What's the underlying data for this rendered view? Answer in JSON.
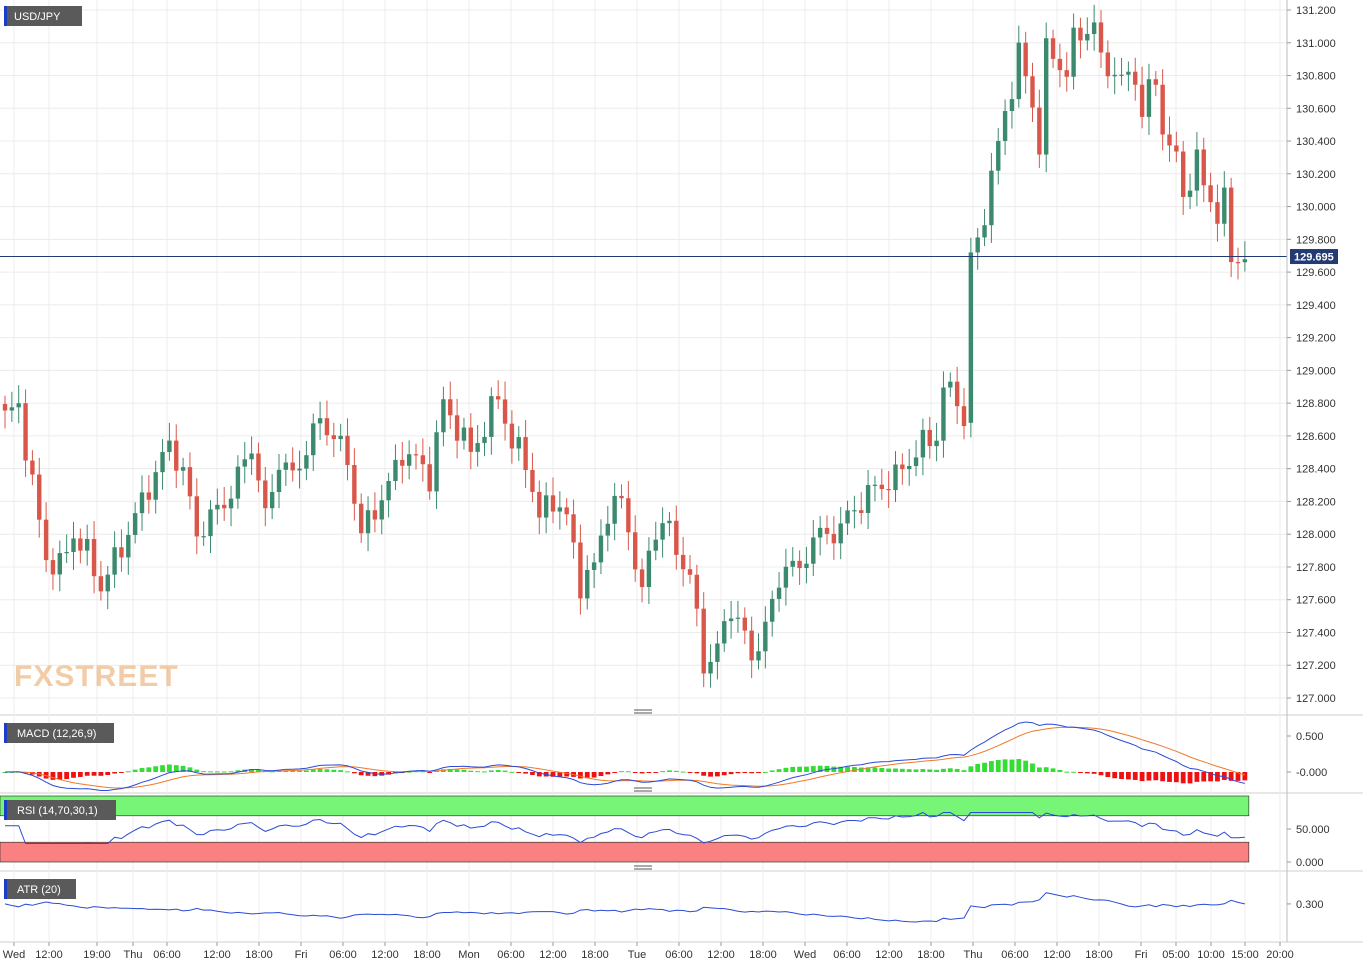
{
  "symbol": "USD/JPY",
  "watermark": "FXSTREET",
  "current_price": {
    "value": 129.695,
    "label": "129.695"
  },
  "colors": {
    "up": "#3b8a6e",
    "down": "#d9574a",
    "price_line": "#243a73",
    "macd_line": "#2b4bd6",
    "signal_line": "#f07a2a",
    "hist_pos": "#33dd33",
    "hist_neg": "#ee1111",
    "rsi_over": "#77f577",
    "rsi_under": "#f98181",
    "rsi_line": "#2b4bd6",
    "atr_line": "#2b4bd6",
    "label_bg": "#5a5a5a",
    "marker": "#1a3ec8"
  },
  "price_axis": {
    "min": 127.0,
    "max": 131.2,
    "ticks": [
      "131.200",
      "131.000",
      "130.800",
      "130.600",
      "130.400",
      "130.200",
      "130.000",
      "129.800",
      "129.600",
      "129.400",
      "129.200",
      "129.000",
      "128.800",
      "128.600",
      "128.400",
      "128.200",
      "128.000",
      "127.800",
      "127.600",
      "127.400",
      "127.200",
      "127.000"
    ]
  },
  "time_axis": {
    "labels": [
      "Wed",
      "12:00",
      "19:00",
      "Thu",
      "06:00",
      "12:00",
      "18:00",
      "Fri",
      "06:00",
      "12:00",
      "18:00",
      "Mon",
      "06:00",
      "12:00",
      "18:00",
      "Tue",
      "06:00",
      "12:00",
      "18:00",
      "Wed",
      "06:00",
      "12:00",
      "18:00",
      "Thu",
      "06:00",
      "12:00",
      "18:00",
      "Fri",
      "05:00",
      "10:00",
      "15:00",
      "20:00"
    ]
  },
  "indicators": {
    "macd": {
      "label": "MACD (12,26,9)",
      "ticks": [
        "0.500",
        "-0.000"
      ],
      "range": [
        -0.25,
        0.75
      ]
    },
    "rsi": {
      "label": "RSI (14,70,30,1)",
      "ticks": [
        "50.000",
        "0.000"
      ],
      "overbought": 70,
      "oversold": 30,
      "range": [
        0,
        100
      ]
    },
    "atr": {
      "label": "ATR (20)",
      "ticks": [
        "0.300"
      ],
      "range": [
        0.16,
        0.42
      ]
    }
  },
  "chart_data": {
    "type": "candlestick",
    "title": "USD/JPY",
    "ylim": [
      127.0,
      131.2
    ],
    "anchors": [
      [
        0,
        128.72
      ],
      [
        2,
        128.78
      ],
      [
        4,
        128.3
      ],
      [
        6,
        127.85
      ],
      [
        8,
        127.8
      ],
      [
        10,
        128.0
      ],
      [
        12,
        127.88
      ],
      [
        14,
        127.68
      ],
      [
        17,
        127.92
      ],
      [
        20,
        128.2
      ],
      [
        24,
        128.55
      ],
      [
        26,
        128.38
      ],
      [
        28,
        128.0
      ],
      [
        30,
        128.1
      ],
      [
        33,
        128.25
      ],
      [
        36,
        128.55
      ],
      [
        38,
        128.1
      ],
      [
        40,
        128.45
      ],
      [
        42,
        128.35
      ],
      [
        46,
        128.7
      ],
      [
        48,
        128.6
      ],
      [
        50,
        128.45
      ],
      [
        52,
        128.0
      ],
      [
        56,
        128.3
      ],
      [
        58,
        128.5
      ],
      [
        60,
        128.45
      ],
      [
        62,
        128.35
      ],
      [
        64,
        128.8
      ],
      [
        66,
        128.65
      ],
      [
        68,
        128.5
      ],
      [
        70,
        128.65
      ],
      [
        72,
        128.85
      ],
      [
        74,
        128.55
      ],
      [
        76,
        128.45
      ],
      [
        78,
        128.1
      ],
      [
        80,
        128.22
      ],
      [
        82,
        128.1
      ],
      [
        84,
        127.7
      ],
      [
        86,
        127.8
      ],
      [
        88,
        128.15
      ],
      [
        90,
        128.2
      ],
      [
        92,
        127.85
      ],
      [
        93,
        127.6
      ],
      [
        94,
        127.9
      ],
      [
        96,
        128.1
      ],
      [
        98,
        127.9
      ],
      [
        100,
        127.75
      ],
      [
        102,
        127.2
      ],
      [
        104,
        127.3
      ],
      [
        106,
        127.55
      ],
      [
        107,
        127.5
      ],
      [
        109,
        127.22
      ],
      [
        110,
        127.35
      ],
      [
        112,
        127.55
      ],
      [
        114,
        127.85
      ],
      [
        116,
        127.75
      ],
      [
        118,
        128.0
      ],
      [
        120,
        127.98
      ],
      [
        122,
        128.05
      ],
      [
        124,
        128.15
      ],
      [
        126,
        128.25
      ],
      [
        128,
        128.3
      ],
      [
        130,
        128.35
      ],
      [
        132,
        128.45
      ],
      [
        134,
        128.55
      ],
      [
        136,
        128.6
      ],
      [
        137,
        128.9
      ],
      [
        138,
        128.85
      ],
      [
        139,
        128.85
      ],
      [
        140,
        128.65
      ],
      [
        141,
        129.7
      ],
      [
        142,
        129.75
      ],
      [
        144,
        130.2
      ],
      [
        146,
        130.55
      ],
      [
        148,
        130.95
      ],
      [
        150,
        130.6
      ],
      [
        151,
        130.4
      ],
      [
        152,
        130.95
      ],
      [
        154,
        130.85
      ],
      [
        155,
        130.85
      ],
      [
        156,
        131.0
      ],
      [
        158,
        131.08
      ],
      [
        159,
        131.15
      ],
      [
        160,
        130.85
      ],
      [
        161,
        130.85
      ],
      [
        163,
        130.8
      ],
      [
        164,
        130.75
      ],
      [
        165,
        130.82
      ],
      [
        166,
        130.55
      ],
      [
        167,
        130.75
      ],
      [
        168,
        130.7
      ],
      [
        170,
        130.35
      ],
      [
        171,
        130.3
      ],
      [
        172,
        130.05
      ],
      [
        174,
        130.3
      ],
      [
        175,
        130.1
      ],
      [
        176,
        130.05
      ],
      [
        177,
        129.95
      ],
      [
        178,
        130.05
      ],
      [
        179,
        129.65
      ],
      [
        180,
        129.7
      ]
    ]
  }
}
